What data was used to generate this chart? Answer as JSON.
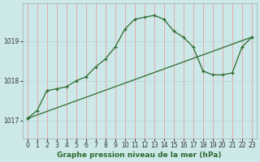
{
  "title": "Graphe pression niveau de la mer (hPa)",
  "background_color": "#cce8e8",
  "grid_color_v": "#e8a0a0",
  "grid_color_h": "#b8d8d8",
  "line_color": "#2d6a2d",
  "xlim": [
    -0.5,
    23.5
  ],
  "ylim": [
    1016.55,
    1019.95
  ],
  "yticks": [
    1017,
    1018,
    1019
  ],
  "xticks": [
    0,
    1,
    2,
    3,
    4,
    5,
    6,
    7,
    8,
    9,
    10,
    11,
    12,
    13,
    14,
    15,
    16,
    17,
    18,
    19,
    20,
    21,
    22,
    23
  ],
  "curve1_x": [
    0,
    1,
    2,
    3,
    4,
    5,
    6,
    7,
    8,
    9,
    10,
    11,
    12,
    13,
    14,
    15,
    16,
    17,
    18,
    19,
    20,
    21,
    22,
    23
  ],
  "curve1_y": [
    1017.05,
    1017.25,
    1017.75,
    1017.8,
    1017.85,
    1018.0,
    1018.1,
    1018.35,
    1018.55,
    1018.85,
    1019.3,
    1019.55,
    1019.6,
    1019.65,
    1019.55,
    1019.25,
    1019.1,
    1018.85,
    1018.25,
    1018.15,
    1018.15,
    1018.2,
    1018.85,
    1019.1
  ],
  "curve2_x": [
    0,
    23
  ],
  "curve2_y": [
    1017.05,
    1019.1
  ],
  "tick_fontsize": 5.5,
  "xlabel_fontsize": 6.5
}
